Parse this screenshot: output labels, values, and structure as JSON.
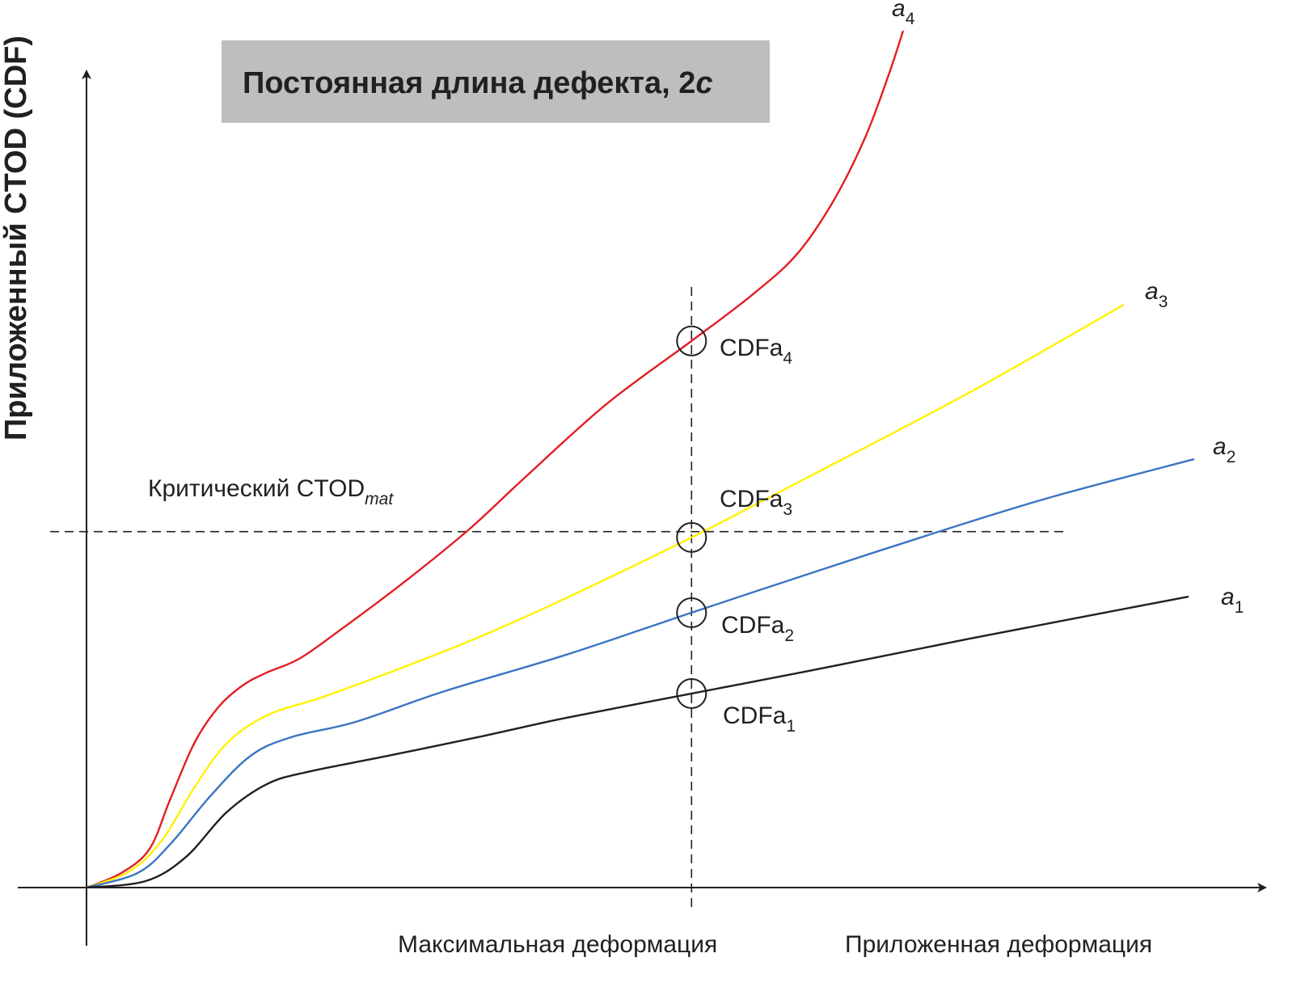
{
  "chart_data": {
    "type": "line",
    "title": "Постоянная длина дефекта, 2",
    "title_italic_suffix": "c",
    "xlabel": "Приложенная деформация",
    "ylabel": "Приложенный CTOD (CDF)",
    "xlim": [
      0,
      100
    ],
    "ylim": [
      0,
      110
    ],
    "grid": false,
    "reference_lines": {
      "critical_ctod": {
        "label": "Критический CTOD",
        "label_sub": "mat",
        "y": 43.6
      },
      "max_deformation": {
        "label": "Максимальная деформация",
        "x": 51.5
      }
    },
    "series": [
      {
        "name": "a",
        "sub": "4",
        "color": "#e31e24",
        "cdf_label": "CDFa",
        "cdf_sub": "4",
        "x": [
          0,
          2.96,
          5.37,
          7.09,
          9.15,
          11.21,
          13.28,
          15.35,
          18.1,
          21.54,
          27.05,
          32.55,
          37.37,
          44.25,
          51.48,
          56.64,
          60.43,
          63.52,
          66.28,
          68.34,
          69.51
        ],
        "y": [
          0,
          1.78,
          4.75,
          10.69,
          17.62,
          22.08,
          24.75,
          26.34,
          28.02,
          31.49,
          37.43,
          43.86,
          50.3,
          59.21,
          66.93,
          72.57,
          77.52,
          83.96,
          91.88,
          99.8,
          104.95
        ]
      },
      {
        "name": "a",
        "sub": "3",
        "color": "#fff200",
        "cdf_label": "CDFa",
        "cdf_sub": "3",
        "x": [
          0,
          3.65,
          6.4,
          9.15,
          11.91,
          15.35,
          20.17,
          27.05,
          33.93,
          40.81,
          51.48,
          61.46,
          75.22,
          88.3
        ],
        "y": [
          0,
          1.98,
          5.74,
          12.18,
          17.62,
          21.09,
          23.37,
          27.03,
          30.99,
          35.45,
          42.87,
          50.3,
          60.69,
          71.39
        ]
      },
      {
        "name": "a",
        "sub": "2",
        "color": "#3a75c4",
        "cdf_label": "CDFa",
        "cdf_sub": "2",
        "x": [
          0,
          4.34,
          7.09,
          10.53,
          13.97,
          17.41,
          22.92,
          30.49,
          40.81,
          51.48,
          61.46,
          72.47,
          82.11,
          94.29
        ],
        "y": [
          0,
          1.78,
          5.25,
          11.19,
          16.14,
          18.42,
          20.3,
          24.06,
          28.51,
          33.66,
          38.42,
          43.56,
          47.82,
          52.48
        ]
      },
      {
        "name": "a",
        "sub": "1",
        "color": "#231f20",
        "cdf_label": "CDFa",
        "cdf_sub": "1",
        "x": [
          0,
          5.02,
          8.47,
          11.91,
          15.35,
          18.79,
          25.67,
          33.93,
          40.81,
          51.48,
          61.46,
          75.22,
          93.81
        ],
        "y": [
          0,
          0.79,
          3.76,
          9.21,
          12.67,
          14.16,
          16.14,
          18.61,
          20.79,
          23.76,
          26.53,
          30.5,
          35.64
        ]
      }
    ]
  }
}
